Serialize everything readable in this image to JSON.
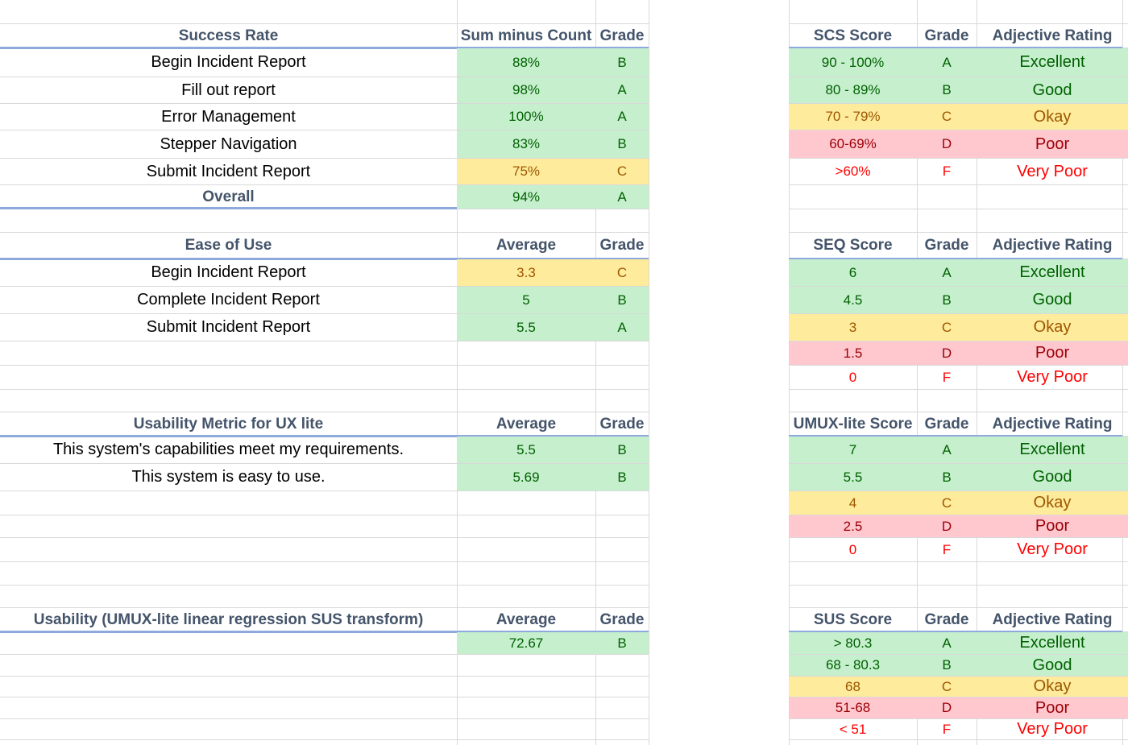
{
  "colors": {
    "good": "#c6efce",
    "okay": "#ffeb9c",
    "poor": "#ffc7ce",
    "very_poor_text": "#ff0000",
    "header_text": "#44546a",
    "header_rule": "#8ea9db"
  },
  "sections": [
    {
      "left": {
        "headers": [
          "Success Rate",
          "Sum minus Count",
          "Grade"
        ],
        "rows": [
          {
            "label": "Begin Incident Report",
            "value": "88%",
            "grade": "B",
            "status": "good"
          },
          {
            "label": "Fill out report",
            "value": "98%",
            "grade": "A",
            "status": "good"
          },
          {
            "label": "Error Management",
            "value": "100%",
            "grade": "A",
            "status": "good"
          },
          {
            "label": "Stepper Navigation",
            "value": "83%",
            "grade": "B",
            "status": "good"
          },
          {
            "label": "Submit Incident Report",
            "value": "75%",
            "grade": "C",
            "status": "okay"
          },
          {
            "label": "Overall",
            "value": "94%",
            "grade": "A",
            "status": "good",
            "bold": true
          }
        ]
      },
      "right": {
        "headers": [
          "SCS Score",
          "Grade",
          "Adjective Rating"
        ],
        "rows": [
          {
            "score": "90 - 100%",
            "grade": "A",
            "rating": "Excellent",
            "status": "good"
          },
          {
            "score": "80 - 89%",
            "grade": "B",
            "rating": "Good",
            "status": "good"
          },
          {
            "score": "70 - 79%",
            "grade": "C",
            "rating": "Okay",
            "status": "okay"
          },
          {
            "score": "60-69%",
            "grade": "D",
            "rating": "Poor",
            "status": "poor"
          },
          {
            "score": ">60%",
            "grade": "F",
            "rating": "Very Poor",
            "status": "very_poor"
          }
        ]
      }
    },
    {
      "left": {
        "headers": [
          "Ease of Use",
          "Average",
          "Grade"
        ],
        "rows": [
          {
            "label": "Begin Incident Report",
            "value": "3.3",
            "grade": "C",
            "status": "okay"
          },
          {
            "label": "Complete Incident Report",
            "value": "5",
            "grade": "B",
            "status": "good"
          },
          {
            "label": "Submit Incident Report",
            "value": "5.5",
            "grade": "A",
            "status": "good"
          }
        ]
      },
      "right": {
        "headers": [
          "SEQ Score",
          "Grade",
          "Adjective Rating"
        ],
        "rows": [
          {
            "score": "6",
            "grade": "A",
            "rating": "Excellent",
            "status": "good"
          },
          {
            "score": "4.5",
            "grade": "B",
            "rating": "Good",
            "status": "good"
          },
          {
            "score": "3",
            "grade": "C",
            "rating": "Okay",
            "status": "okay"
          },
          {
            "score": "1.5",
            "grade": "D",
            "rating": "Poor",
            "status": "poor"
          },
          {
            "score": "0",
            "grade": "F",
            "rating": "Very Poor",
            "status": "very_poor"
          }
        ]
      }
    },
    {
      "left": {
        "headers": [
          "Usability Metric for UX lite",
          "Average",
          "Grade"
        ],
        "rows": [
          {
            "label": "This system's capabilities meet my requirements.",
            "value": "5.5",
            "grade": "B",
            "status": "good"
          },
          {
            "label": "This system is easy to use.",
            "value": "5.69",
            "grade": "B",
            "status": "good"
          }
        ]
      },
      "right": {
        "headers": [
          "UMUX-lite Score",
          "Grade",
          "Adjective Rating"
        ],
        "rows": [
          {
            "score": "7",
            "grade": "A",
            "rating": "Excellent",
            "status": "good"
          },
          {
            "score": "5.5",
            "grade": "B",
            "rating": "Good",
            "status": "good"
          },
          {
            "score": "4",
            "grade": "C",
            "rating": "Okay",
            "status": "okay"
          },
          {
            "score": "2.5",
            "grade": "D",
            "rating": "Poor",
            "status": "poor"
          },
          {
            "score": "0",
            "grade": "F",
            "rating": "Very Poor",
            "status": "very_poor"
          }
        ]
      }
    },
    {
      "left": {
        "headers": [
          "Usability (UMUX-lite linear regression SUS transform)",
          "Average",
          "Grade"
        ],
        "rows": [
          {
            "label": "",
            "value": "72.67",
            "grade": "B",
            "status": "good"
          }
        ]
      },
      "right": {
        "headers": [
          "SUS Score",
          "Grade",
          "Adjective Rating"
        ],
        "rows": [
          {
            "score": "> 80.3",
            "grade": "A",
            "rating": "Excellent",
            "status": "good"
          },
          {
            "score": "68 - 80.3",
            "grade": "B",
            "rating": "Good",
            "status": "good"
          },
          {
            "score": "68",
            "grade": "C",
            "rating": "Okay",
            "status": "okay"
          },
          {
            "score": "51-68",
            "grade": "D",
            "rating": "Poor",
            "status": "poor"
          },
          {
            "score": "< 51",
            "grade": "F",
            "rating": "Very Poor",
            "status": "very_poor"
          }
        ]
      }
    }
  ]
}
